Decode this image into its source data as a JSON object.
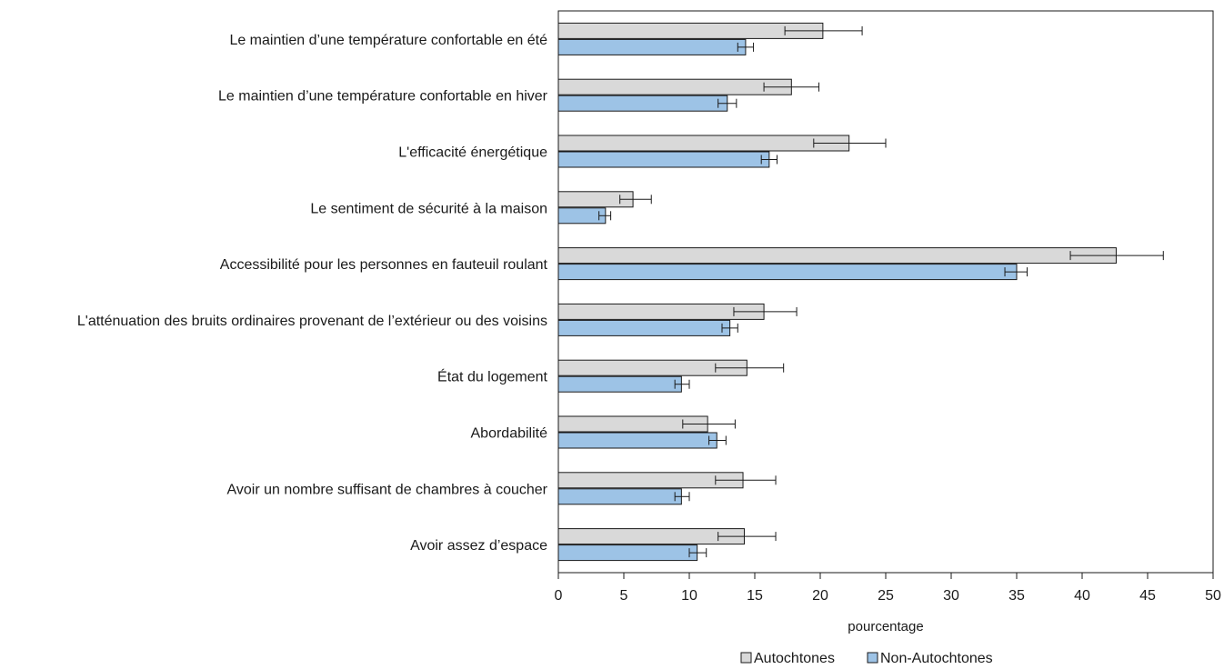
{
  "chart_data": {
    "type": "bar",
    "orientation": "horizontal",
    "categories": [
      "Le maintien d’une température confortable en été",
      "Le maintien d’une température confortable en hiver",
      "L'efficacité énergétique",
      "Le sentiment de sécurité à la maison",
      "Accessibilité pour les personnes en fauteuil roulant",
      "L'atténuation des bruits ordinaires provenant de l’extérieur ou des voisins",
      "État du logement",
      "Abordabilité",
      "Avoir un nombre suffisant de chambres à coucher",
      "Avoir assez d’espace"
    ],
    "series": [
      {
        "name": "Autochtones",
        "color": "#d9d9d9",
        "values": [
          20.2,
          17.8,
          22.2,
          5.7,
          42.6,
          15.7,
          14.4,
          11.4,
          14.1,
          14.2
        ],
        "error_low": [
          17.3,
          15.7,
          19.5,
          4.7,
          39.1,
          13.4,
          12.0,
          9.5,
          12.0,
          12.2
        ],
        "error_high": [
          23.2,
          19.9,
          25.0,
          7.1,
          46.2,
          18.2,
          17.2,
          13.5,
          16.6,
          16.6
        ]
      },
      {
        "name": "Non-Autochtones",
        "color": "#9dc3e6",
        "values": [
          14.3,
          12.9,
          16.1,
          3.6,
          35.0,
          13.1,
          9.4,
          12.1,
          9.4,
          10.6
        ],
        "error_low": [
          13.7,
          12.2,
          15.5,
          3.1,
          34.1,
          12.5,
          8.9,
          11.5,
          8.9,
          10.0
        ],
        "error_high": [
          14.9,
          13.6,
          16.7,
          4.0,
          35.8,
          13.7,
          10.0,
          12.8,
          10.0,
          11.3
        ]
      }
    ],
    "xlabel": "pourcentage",
    "xlim": [
      0,
      50
    ],
    "xticks": [
      0,
      5,
      10,
      15,
      20,
      25,
      30,
      35,
      40,
      45,
      50
    ],
    "legend_position": "bottom",
    "grid": false
  }
}
